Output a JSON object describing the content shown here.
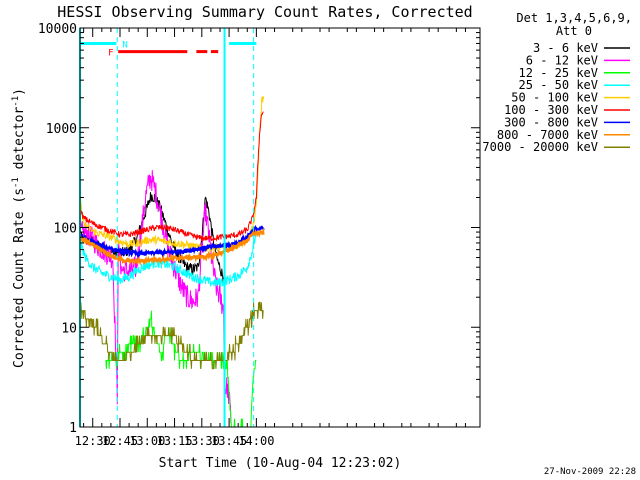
{
  "chart_data": {
    "type": "line",
    "title": "HESSI Observing Summary Count Rates, Corrected",
    "xlabel": "Start Time (10-Aug-04 12:23:02)",
    "ylabel_main": "Corrected Count Rate (s",
    "ylabel_sup1": "-1",
    "ylabel_mid": " detector",
    "ylabel_sup2": "-1",
    "ylabel_end": ")",
    "yscale": "log",
    "ylim": [
      1,
      10000
    ],
    "xlim_minutes": [
      743,
      963
    ],
    "x_ticks": [
      {
        "min": 750,
        "label": "12:30"
      },
      {
        "min": 765,
        "label": "12:45"
      },
      {
        "min": 780,
        "label": "13:00"
      },
      {
        "min": 795,
        "label": "13:15"
      },
      {
        "min": 810,
        "label": "13:30"
      },
      {
        "min": 825,
        "label": "13:45"
      },
      {
        "min": 840,
        "label": "14:00"
      }
    ],
    "y_ticks": [
      {
        "v": 1,
        "label": "1"
      },
      {
        "v": 10,
        "label": "10"
      },
      {
        "v": 100,
        "label": "100"
      },
      {
        "v": 1000,
        "label": "1000"
      },
      {
        "v": 10000,
        "label": "10000"
      }
    ],
    "legend_header": [
      "Det 1,3,4,5,6,9,",
      "Att 0"
    ],
    "footer_date": "27-Nov-2009 22:28",
    "flag_labels": {
      "night": "N",
      "flare": "F"
    },
    "series": [
      {
        "name": "3 - 6 keV",
        "color": "#000000",
        "points": [
          [
            743,
            80
          ],
          [
            748,
            75
          ],
          [
            753,
            65
          ],
          [
            758,
            58
          ],
          [
            762,
            55
          ],
          [
            766,
            55
          ],
          [
            770,
            60
          ],
          [
            774,
            75
          ],
          [
            777,
            110
          ],
          [
            780,
            160
          ],
          [
            782,
            210
          ],
          [
            784,
            200
          ],
          [
            787,
            160
          ],
          [
            790,
            110
          ],
          [
            793,
            75
          ],
          [
            796,
            55
          ],
          [
            799,
            45
          ],
          [
            802,
            40
          ],
          [
            805,
            38
          ],
          [
            808,
            40
          ],
          [
            810,
            80
          ],
          [
            812,
            200
          ],
          [
            814,
            140
          ],
          [
            816,
            80
          ],
          [
            818,
            50
          ],
          [
            821,
            35
          ],
          [
            822.5,
            30
          ]
        ]
      },
      {
        "name": "6 - 12 keV",
        "color": "#ff00ff",
        "points": [
          [
            743,
            90
          ],
          [
            748,
            85
          ],
          [
            753,
            65
          ],
          [
            758,
            55
          ],
          [
            761,
            50
          ],
          [
            763,
            4
          ],
          [
            763.5,
            2
          ],
          [
            764,
            60
          ],
          [
            766,
            38
          ],
          [
            770,
            36
          ],
          [
            774,
            40
          ],
          [
            777,
            100
          ],
          [
            779,
            200
          ],
          [
            781,
            290
          ],
          [
            782,
            320
          ],
          [
            784,
            250
          ],
          [
            787,
            150
          ],
          [
            790,
            80
          ],
          [
            793,
            50
          ],
          [
            796,
            35
          ],
          [
            799,
            25
          ],
          [
            802,
            20
          ],
          [
            805,
            18
          ],
          [
            808,
            20
          ],
          [
            810,
            60
          ],
          [
            812,
            150
          ],
          [
            814,
            80
          ],
          [
            816,
            40
          ],
          [
            818,
            25
          ],
          [
            820,
            20
          ],
          [
            822,
            15
          ],
          [
            822.5,
            2.5
          ],
          [
            824,
            2.5
          ],
          [
            825,
            2
          ],
          [
            826,
            1.2
          ]
        ]
      },
      {
        "name": "12 - 25 keV",
        "color": "#00ff00",
        "points": [
          [
            757,
            5
          ],
          [
            760,
            4.5
          ],
          [
            764,
            5
          ],
          [
            768,
            6
          ],
          [
            772,
            6.5
          ],
          [
            776,
            7
          ],
          [
            780,
            10
          ],
          [
            782,
            12
          ],
          [
            784,
            9
          ],
          [
            786,
            7
          ],
          [
            788,
            5
          ],
          [
            790,
            8
          ],
          [
            792,
            9
          ],
          [
            795,
            6
          ],
          [
            798,
            5
          ],
          [
            802,
            5
          ],
          [
            806,
            5.5
          ],
          [
            810,
            5
          ],
          [
            814,
            5
          ],
          [
            818,
            5
          ],
          [
            822.5,
            5
          ],
          [
            824,
            5
          ],
          [
            826,
            1.1
          ],
          [
            837,
            1.1
          ],
          [
            838,
            3
          ],
          [
            840,
            5
          ]
        ]
      },
      {
        "name": "25 - 50 keV",
        "color": "#00ffff",
        "points": [
          [
            743,
            72
          ],
          [
            746,
            50
          ],
          [
            750,
            40
          ],
          [
            755,
            35
          ],
          [
            760,
            32
          ],
          [
            765,
            30
          ],
          [
            770,
            32
          ],
          [
            775,
            38
          ],
          [
            780,
            42
          ],
          [
            785,
            44
          ],
          [
            790,
            43
          ],
          [
            795,
            40
          ],
          [
            800,
            36
          ],
          [
            805,
            32
          ],
          [
            810,
            30
          ],
          [
            815,
            28
          ],
          [
            820,
            28
          ],
          [
            825,
            30
          ],
          [
            830,
            33
          ],
          [
            835,
            40
          ],
          [
            838,
            60
          ],
          [
            840,
            90
          ]
        ]
      },
      {
        "name": "50 - 100 keV",
        "color": "#ffcc00",
        "points": [
          [
            743,
            230
          ],
          [
            744,
            130
          ],
          [
            746,
            105
          ],
          [
            750,
            92
          ],
          [
            755,
            85
          ],
          [
            760,
            80
          ],
          [
            765,
            72
          ],
          [
            770,
            68
          ],
          [
            775,
            70
          ],
          [
            780,
            75
          ],
          [
            785,
            75
          ],
          [
            790,
            72
          ],
          [
            795,
            70
          ],
          [
            800,
            68
          ],
          [
            805,
            65
          ],
          [
            810,
            62
          ],
          [
            815,
            63
          ],
          [
            820,
            63
          ],
          [
            825,
            65
          ],
          [
            830,
            67
          ],
          [
            835,
            75
          ],
          [
            838,
            100
          ],
          [
            840,
            160
          ],
          [
            841,
            400
          ],
          [
            842,
            1000
          ],
          [
            843,
            1900
          ],
          [
            844,
            2000
          ]
        ]
      },
      {
        "name": "100 - 300 keV",
        "color": "#ff0000",
        "points": [
          [
            743,
            150
          ],
          [
            745,
            125
          ],
          [
            750,
            110
          ],
          [
            755,
            100
          ],
          [
            760,
            92
          ],
          [
            765,
            85
          ],
          [
            770,
            85
          ],
          [
            775,
            90
          ],
          [
            780,
            95
          ],
          [
            785,
            100
          ],
          [
            790,
            100
          ],
          [
            795,
            95
          ],
          [
            800,
            88
          ],
          [
            805,
            82
          ],
          [
            810,
            78
          ],
          [
            815,
            78
          ],
          [
            820,
            80
          ],
          [
            825,
            82
          ],
          [
            830,
            85
          ],
          [
            835,
            95
          ],
          [
            838,
            125
          ],
          [
            840,
            200
          ],
          [
            841,
            500
          ],
          [
            842,
            1000
          ],
          [
            843,
            1400
          ],
          [
            844,
            1450
          ]
        ]
      },
      {
        "name": "300 - 800 keV",
        "color": "#0000ff",
        "points": [
          [
            743,
            82
          ],
          [
            750,
            72
          ],
          [
            755,
            65
          ],
          [
            760,
            62
          ],
          [
            765,
            58
          ],
          [
            770,
            56
          ],
          [
            775,
            55
          ],
          [
            780,
            55
          ],
          [
            785,
            56
          ],
          [
            790,
            56
          ],
          [
            795,
            57
          ],
          [
            800,
            58
          ],
          [
            805,
            60
          ],
          [
            810,
            62
          ],
          [
            815,
            64
          ],
          [
            820,
            65
          ],
          [
            825,
            67
          ],
          [
            830,
            70
          ],
          [
            835,
            80
          ],
          [
            838,
            90
          ],
          [
            840,
            98
          ],
          [
            844,
            98
          ]
        ]
      },
      {
        "name": "800 - 7000 keV",
        "color": "#ff8800",
        "points": [
          [
            743,
            78
          ],
          [
            750,
            68
          ],
          [
            755,
            60
          ],
          [
            760,
            52
          ],
          [
            765,
            48
          ],
          [
            770,
            46
          ],
          [
            775,
            46
          ],
          [
            780,
            47
          ],
          [
            785,
            48
          ],
          [
            790,
            48
          ],
          [
            795,
            49
          ],
          [
            800,
            50
          ],
          [
            805,
            50
          ],
          [
            810,
            51
          ],
          [
            815,
            52
          ],
          [
            820,
            55
          ],
          [
            825,
            60
          ],
          [
            830,
            66
          ],
          [
            835,
            75
          ],
          [
            838,
            85
          ],
          [
            840,
            88
          ],
          [
            844,
            88
          ]
        ]
      },
      {
        "name": "7000 - 20000 keV",
        "color": "#808000",
        "points": [
          [
            743,
            15
          ],
          [
            746,
            13
          ],
          [
            750,
            11
          ],
          [
            753,
            9
          ],
          [
            756,
            7
          ],
          [
            760,
            5.5
          ],
          [
            764,
            4.5
          ],
          [
            768,
            5
          ],
          [
            772,
            6
          ],
          [
            776,
            7
          ],
          [
            780,
            8
          ],
          [
            784,
            8.5
          ],
          [
            788,
            8.5
          ],
          [
            792,
            8.5
          ],
          [
            796,
            7.5
          ],
          [
            800,
            6
          ],
          [
            804,
            5
          ],
          [
            808,
            5
          ],
          [
            812,
            5
          ],
          [
            816,
            5
          ],
          [
            820,
            5
          ],
          [
            822.5,
            5
          ],
          [
            824,
            5
          ],
          [
            828,
            6
          ],
          [
            832,
            8
          ],
          [
            836,
            11
          ],
          [
            838,
            14
          ],
          [
            840,
            16
          ],
          [
            844,
            15
          ]
        ]
      }
    ],
    "flags": {
      "night_bar": {
        "color": "#00ffff",
        "y": 7000,
        "segments": [
          [
            743,
            763
          ],
          [
            825,
            840
          ]
        ]
      },
      "flare_bar": {
        "color": "#ff0000",
        "y": 5800,
        "segments": [
          [
            764,
            802
          ],
          [
            807,
            813
          ],
          [
            815,
            819
          ]
        ]
      }
    },
    "vertical_lines": {
      "color": "#00ffff",
      "solid": [
        743,
        822.5
      ],
      "dashed": [
        763.5,
        838.5
      ]
    }
  }
}
